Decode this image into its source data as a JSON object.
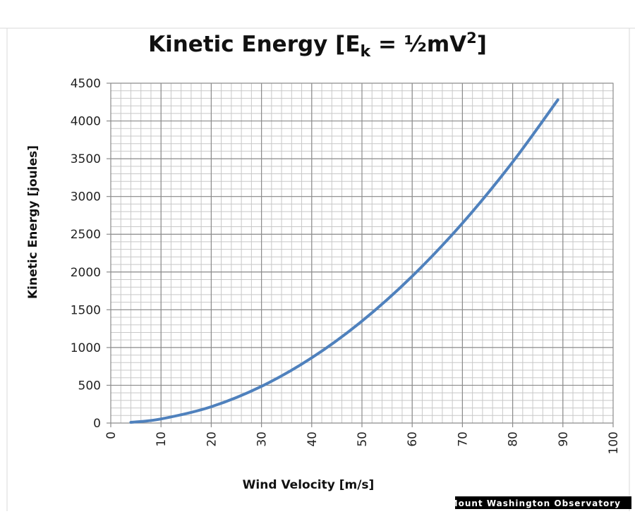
{
  "chart_data": {
    "type": "line",
    "title": {
      "main": "Kinetic Energy [E",
      "subscript": "k",
      "middle": " = ½mV",
      "superscript": "2",
      "end": "]"
    },
    "xlabel": "Wind Velocity [m/s]",
    "ylabel": "Kinetic Energy [joules]",
    "xlim": [
      0,
      100
    ],
    "ylim": [
      0,
      4500
    ],
    "x_ticks": [
      0,
      10,
      20,
      30,
      40,
      50,
      60,
      70,
      80,
      90,
      100
    ],
    "y_ticks": [
      0,
      500,
      1000,
      1500,
      2000,
      2500,
      3000,
      3500,
      4000,
      4500
    ],
    "grid": true,
    "legend": "none",
    "series": [
      {
        "color": "#4f81bd",
        "x": [
          4,
          10,
          20,
          30,
          40,
          50,
          60,
          70,
          80,
          89
        ],
        "y": [
          9,
          54,
          216,
          486,
          864,
          1350,
          1944,
          2646,
          3456,
          4280
        ]
      }
    ]
  },
  "watermark": "Mount Washington Observatory",
  "colors": {
    "grid_major": "#8c8c8c",
    "grid_minor": "#c8c8c8",
    "frame": "#8c8c8c",
    "series": "#4f81bd"
  }
}
